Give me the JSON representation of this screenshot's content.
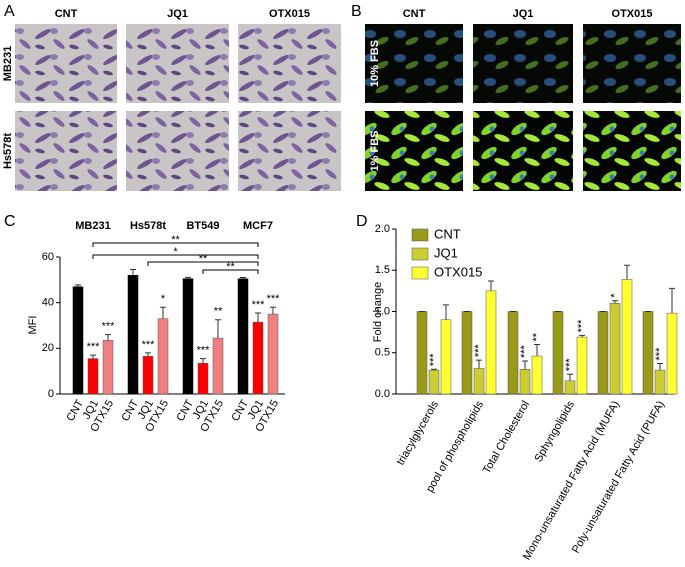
{
  "image_panels": [
    {
      "label": "A",
      "columns": [
        "CNT",
        "JQ1",
        "OTX015"
      ],
      "rows": [
        "MB231",
        "Hs578t"
      ]
    },
    {
      "label": "B",
      "columns": [
        "CNT",
        "JQ1",
        "OTX015"
      ],
      "rows": [
        "10% FBS",
        "1% FBS"
      ]
    }
  ],
  "chart_data": [
    {
      "type": "bar",
      "panel_label": "C",
      "y_label": "MFI",
      "categories": [
        "MB231",
        "Hs578t",
        "BT549",
        "MCF7"
      ],
      "series": [
        {
          "name": "CNT",
          "color": "#000000",
          "values": [
            47,
            52,
            50.5,
            50.5
          ],
          "errors": [
            0.8,
            2.5,
            0.6,
            0.5
          ],
          "significance": [
            null,
            null,
            null,
            null
          ]
        },
        {
          "name": "JQ1",
          "color": "#ff0000",
          "values": [
            15.5,
            16.5,
            13.5,
            31.5
          ],
          "errors": [
            1.5,
            1.5,
            2,
            4
          ],
          "significance": [
            "***",
            "***",
            "***",
            "***"
          ]
        },
        {
          "name": "OTX15",
          "color": "#f08080",
          "values": [
            23.5,
            33,
            24.5,
            35
          ],
          "errors": [
            2.5,
            5,
            8,
            3
          ],
          "significance": [
            "***",
            "*",
            "**",
            "***"
          ]
        }
      ],
      "comparisons": [
        "**",
        "*",
        "**",
        "**"
      ],
      "ylim": [
        0,
        60
      ],
      "yticks": [
        0,
        20,
        40,
        60
      ]
    },
    {
      "type": "bar",
      "panel_label": "D",
      "y_label": "Fold change",
      "categories": [
        "triacylglycerols",
        "pool of phospholipids",
        "Total Cholesterol",
        "Sphyngolipids",
        "Mono-unsaturated Fatty Acid (MUFA)",
        "Poly-unsaturated Fatty Acid (PUFA)"
      ],
      "series": [
        {
          "name": "CNT",
          "color": "#99991a",
          "values": [
            1,
            1,
            1,
            1,
            1,
            1
          ],
          "errors": [
            0,
            0,
            0,
            0,
            0,
            0
          ],
          "significance": [
            null,
            null,
            null,
            null,
            null,
            null
          ]
        },
        {
          "name": "JQ1",
          "color": "#cccc33",
          "values": [
            0.29,
            0.31,
            0.3,
            0.16,
            1.1,
            0.29
          ],
          "errors": [
            0.01,
            0.1,
            0.1,
            0.08,
            0.03,
            0.08
          ],
          "significance": [
            "***",
            "***",
            "***",
            "***",
            "*",
            "***"
          ]
        },
        {
          "name": "OTX015",
          "color": "#ffff33",
          "values": [
            0.9,
            1.25,
            0.46,
            0.69,
            1.39,
            0.98
          ],
          "errors": [
            0.18,
            0.12,
            0.14,
            0.02,
            0.17,
            0.3
          ],
          "significance": [
            null,
            null,
            "**",
            "***",
            null,
            null
          ]
        }
      ],
      "legend": "upper left",
      "ylim": [
        0,
        2
      ],
      "yticks": [
        {
          "value": 0,
          "label": "0.0"
        },
        {
          "value": 0.5,
          "label": "0.5"
        },
        {
          "value": 1,
          "label": "1.0"
        },
        {
          "value": 1.5,
          "label": "1.5"
        },
        {
          "value": 2,
          "label": "2.0"
        }
      ]
    }
  ]
}
